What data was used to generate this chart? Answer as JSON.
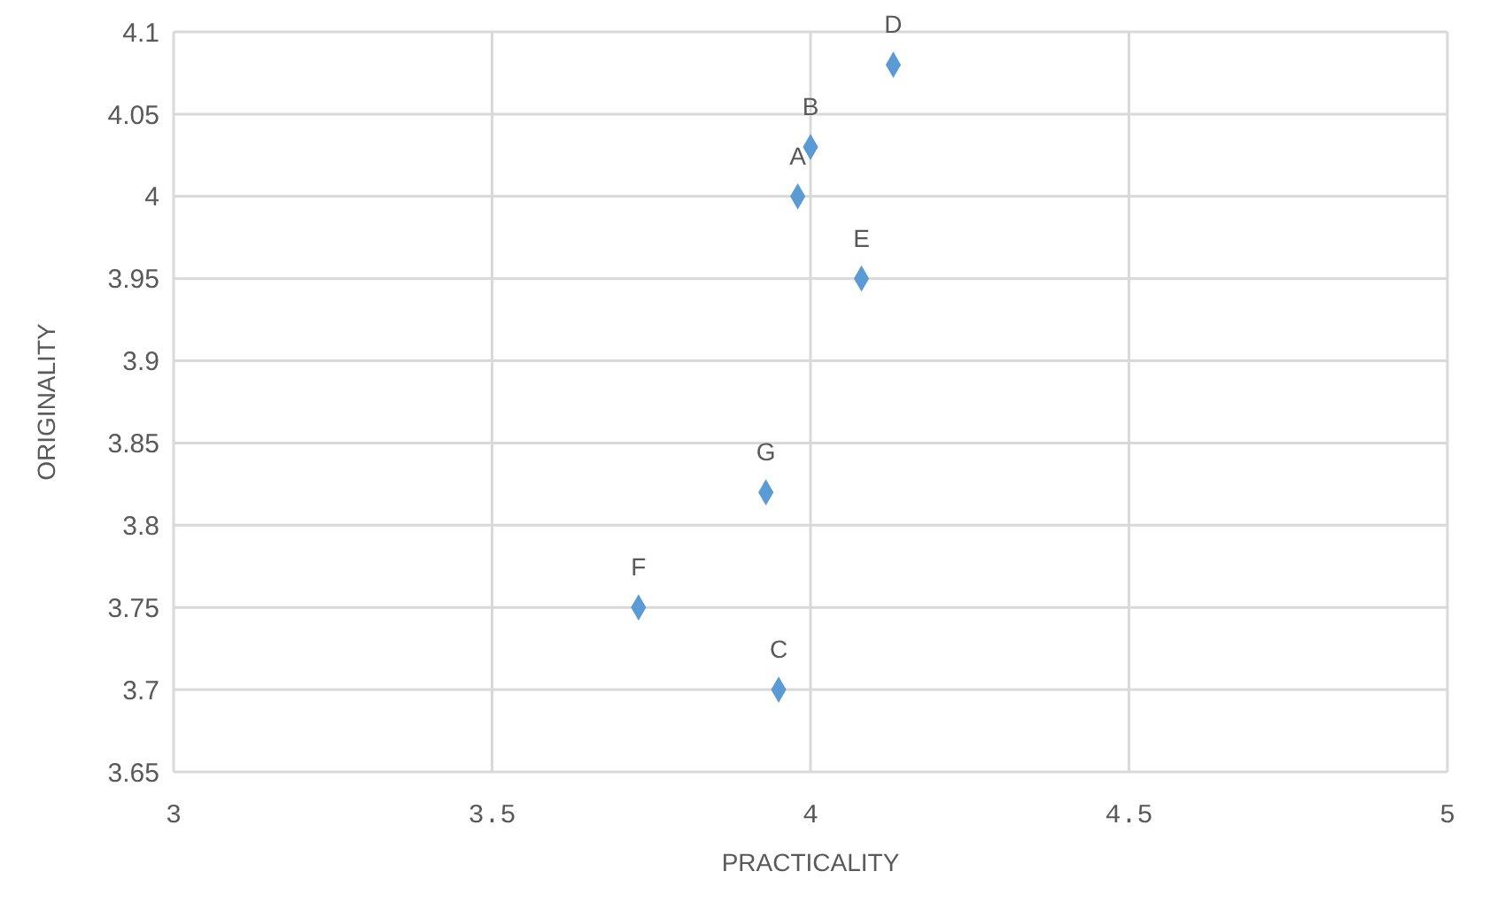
{
  "chart_data": {
    "type": "scatter",
    "xlabel": "PRACTICALITY",
    "ylabel": "ORIGINALITY",
    "x": [
      3.98,
      4.0,
      3.95,
      4.13,
      4.08,
      3.73,
      3.93
    ],
    "series": [
      {
        "color": "#5b9bd5",
        "values": [
          4.0,
          4.03,
          3.7,
          4.08,
          3.95,
          3.75,
          3.82
        ]
      }
    ],
    "xlim": [
      3,
      5
    ],
    "xticks": [
      3,
      3.5,
      4,
      4.5,
      5
    ],
    "ylim": [
      3.65,
      4.1
    ],
    "yticks": [
      3.65,
      3.7,
      3.75,
      3.8,
      3.85,
      3.9,
      3.95,
      4,
      4.05,
      4.1
    ],
    "grid": true,
    "marker": "diamond",
    "legend": false,
    "annotations": [
      {
        "text": "A",
        "x": 3.98,
        "y": 4.0
      },
      {
        "text": "B",
        "x": 4.0,
        "y": 4.03
      },
      {
        "text": "C",
        "x": 3.95,
        "y": 3.7
      },
      {
        "text": "D",
        "x": 4.13,
        "y": 4.08
      },
      {
        "text": "E",
        "x": 4.08,
        "y": 3.95
      },
      {
        "text": "F",
        "x": 3.73,
        "y": 3.75
      },
      {
        "text": "G",
        "x": 3.93,
        "y": 3.82
      }
    ]
  }
}
